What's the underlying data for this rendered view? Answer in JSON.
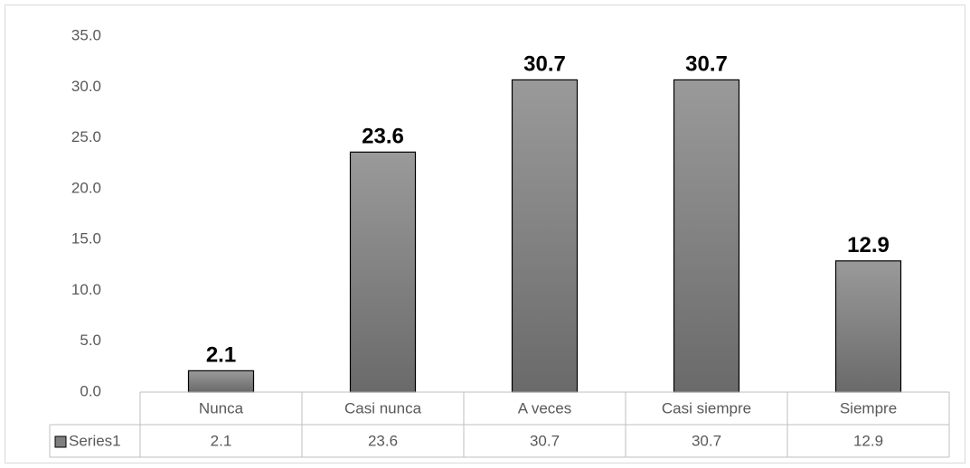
{
  "chart_data": {
    "type": "bar",
    "categories": [
      "Nunca",
      "Casi nunca",
      "A veces",
      "Casi siempre",
      "Siempre"
    ],
    "series": [
      {
        "name": "Series1",
        "color": "#9a9a9a",
        "values": [
          2.1,
          23.6,
          30.7,
          30.7,
          12.9
        ]
      }
    ],
    "ylim": [
      0,
      35
    ],
    "yticks": [
      {
        "value": 0,
        "label": "0.0"
      },
      {
        "value": 5,
        "label": "5.0"
      },
      {
        "value": 10,
        "label": "10.0"
      },
      {
        "value": 15,
        "label": "15.0"
      },
      {
        "value": 20,
        "label": "20.0"
      },
      {
        "value": 25,
        "label": "25.0"
      },
      {
        "value": 30,
        "label": "30.0"
      },
      {
        "value": 35,
        "label": "35.0"
      }
    ],
    "grid": false,
    "data_labels": true,
    "data_table": true
  }
}
